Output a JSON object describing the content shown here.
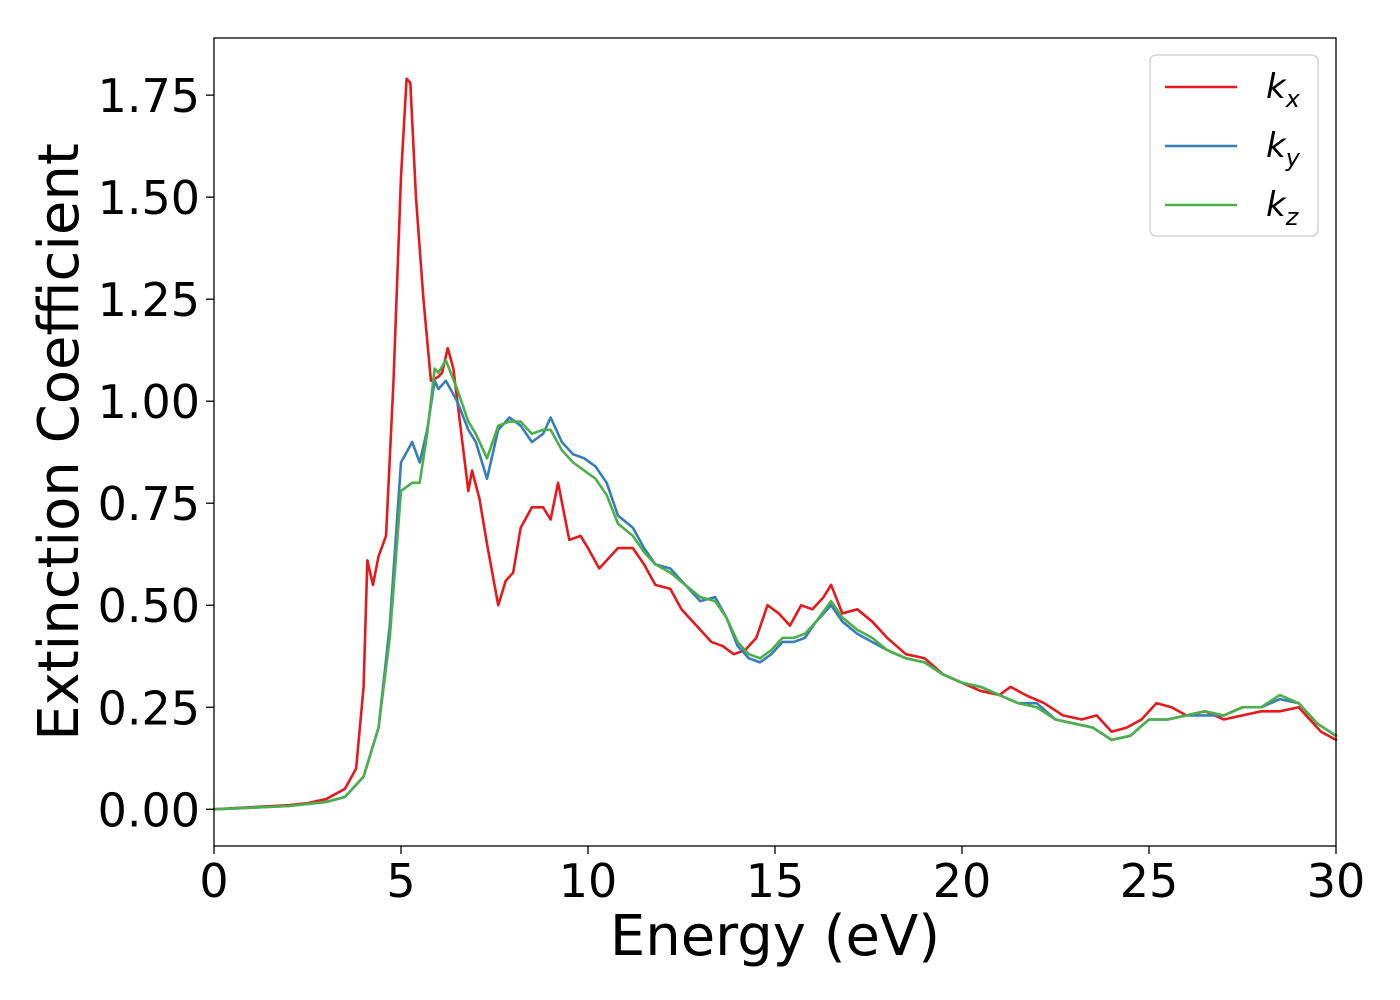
{
  "chart_data": {
    "type": "line",
    "xlabel": "Energy (eV)",
    "ylabel": "Extinction Coefficient",
    "xlim": [
      0,
      30
    ],
    "ylim": [
      -0.09,
      1.89
    ],
    "xticks": [
      0,
      5,
      10,
      15,
      20,
      25,
      30
    ],
    "xtick_labels": [
      "0",
      "5",
      "10",
      "15",
      "20",
      "25",
      "30"
    ],
    "yticks": [
      0,
      0.25,
      0.5,
      0.75,
      1.0,
      1.25,
      1.5,
      1.75
    ],
    "ytick_labels": [
      "0.00",
      "0.25",
      "0.50",
      "0.75",
      "1.00",
      "1.25",
      "1.50",
      "1.75"
    ],
    "grid": false,
    "legend_position": "top-right",
    "series": [
      {
        "name": "k_x",
        "label_base": "k",
        "label_sub": "x",
        "color": "#e41a1c",
        "points": [
          [
            0,
            0
          ],
          [
            1,
            0.005
          ],
          [
            2,
            0.01
          ],
          [
            2.5,
            0.015
          ],
          [
            3,
            0.025
          ],
          [
            3.5,
            0.05
          ],
          [
            3.8,
            0.1
          ],
          [
            4.0,
            0.3
          ],
          [
            4.1,
            0.61
          ],
          [
            4.25,
            0.55
          ],
          [
            4.4,
            0.62
          ],
          [
            4.6,
            0.67
          ],
          [
            4.8,
            1.05
          ],
          [
            5.0,
            1.55
          ],
          [
            5.15,
            1.79
          ],
          [
            5.25,
            1.78
          ],
          [
            5.4,
            1.5
          ],
          [
            5.6,
            1.25
          ],
          [
            5.8,
            1.05
          ],
          [
            6.0,
            1.06
          ],
          [
            6.1,
            1.07
          ],
          [
            6.25,
            1.13
          ],
          [
            6.4,
            1.08
          ],
          [
            6.6,
            0.93
          ],
          [
            6.8,
            0.78
          ],
          [
            6.9,
            0.83
          ],
          [
            7.1,
            0.76
          ],
          [
            7.3,
            0.65
          ],
          [
            7.6,
            0.5
          ],
          [
            7.8,
            0.56
          ],
          [
            8.0,
            0.58
          ],
          [
            8.2,
            0.69
          ],
          [
            8.5,
            0.74
          ],
          [
            8.8,
            0.74
          ],
          [
            9.0,
            0.71
          ],
          [
            9.2,
            0.8
          ],
          [
            9.5,
            0.66
          ],
          [
            9.8,
            0.67
          ],
          [
            10.0,
            0.64
          ],
          [
            10.3,
            0.59
          ],
          [
            10.6,
            0.62
          ],
          [
            10.8,
            0.64
          ],
          [
            11.2,
            0.64
          ],
          [
            11.5,
            0.6
          ],
          [
            11.8,
            0.55
          ],
          [
            12.2,
            0.54
          ],
          [
            12.5,
            0.49
          ],
          [
            12.8,
            0.46
          ],
          [
            13.0,
            0.44
          ],
          [
            13.3,
            0.41
          ],
          [
            13.6,
            0.4
          ],
          [
            13.9,
            0.38
          ],
          [
            14.2,
            0.39
          ],
          [
            14.5,
            0.42
          ],
          [
            14.8,
            0.5
          ],
          [
            15.1,
            0.48
          ],
          [
            15.4,
            0.45
          ],
          [
            15.7,
            0.5
          ],
          [
            16.0,
            0.49
          ],
          [
            16.3,
            0.52
          ],
          [
            16.5,
            0.55
          ],
          [
            16.8,
            0.48
          ],
          [
            17.2,
            0.49
          ],
          [
            17.6,
            0.46
          ],
          [
            18.0,
            0.42
          ],
          [
            18.5,
            0.38
          ],
          [
            19.0,
            0.37
          ],
          [
            19.5,
            0.33
          ],
          [
            20.0,
            0.31
          ],
          [
            20.5,
            0.29
          ],
          [
            21.0,
            0.28
          ],
          [
            21.3,
            0.3
          ],
          [
            21.7,
            0.28
          ],
          [
            22.2,
            0.26
          ],
          [
            22.7,
            0.23
          ],
          [
            23.2,
            0.22
          ],
          [
            23.6,
            0.23
          ],
          [
            24.0,
            0.19
          ],
          [
            24.4,
            0.2
          ],
          [
            24.8,
            0.22
          ],
          [
            25.2,
            0.26
          ],
          [
            25.6,
            0.25
          ],
          [
            26.0,
            0.23
          ],
          [
            26.5,
            0.24
          ],
          [
            27.0,
            0.22
          ],
          [
            27.5,
            0.23
          ],
          [
            28.0,
            0.24
          ],
          [
            28.5,
            0.24
          ],
          [
            29.0,
            0.25
          ],
          [
            29.3,
            0.22
          ],
          [
            29.6,
            0.19
          ],
          [
            30.0,
            0.17
          ]
        ]
      },
      {
        "name": "k_y",
        "label_base": "k",
        "label_sub": "y",
        "color": "#377eb8",
        "points": [
          [
            0,
            0
          ],
          [
            1,
            0.004
          ],
          [
            2,
            0.008
          ],
          [
            3,
            0.018
          ],
          [
            3.5,
            0.03
          ],
          [
            4.0,
            0.08
          ],
          [
            4.4,
            0.2
          ],
          [
            4.7,
            0.45
          ],
          [
            5.0,
            0.85
          ],
          [
            5.3,
            0.9
          ],
          [
            5.5,
            0.85
          ],
          [
            5.7,
            0.93
          ],
          [
            5.9,
            1.05
          ],
          [
            6.0,
            1.03
          ],
          [
            6.2,
            1.05
          ],
          [
            6.5,
            1.0
          ],
          [
            6.8,
            0.93
          ],
          [
            7.0,
            0.9
          ],
          [
            7.3,
            0.81
          ],
          [
            7.6,
            0.93
          ],
          [
            7.9,
            0.96
          ],
          [
            8.2,
            0.94
          ],
          [
            8.5,
            0.9
          ],
          [
            8.8,
            0.92
          ],
          [
            9.0,
            0.96
          ],
          [
            9.3,
            0.9
          ],
          [
            9.6,
            0.87
          ],
          [
            9.9,
            0.86
          ],
          [
            10.2,
            0.84
          ],
          [
            10.5,
            0.8
          ],
          [
            10.8,
            0.72
          ],
          [
            11.2,
            0.69
          ],
          [
            11.5,
            0.64
          ],
          [
            11.8,
            0.6
          ],
          [
            12.2,
            0.59
          ],
          [
            12.6,
            0.55
          ],
          [
            13.0,
            0.51
          ],
          [
            13.4,
            0.52
          ],
          [
            13.7,
            0.47
          ],
          [
            14.0,
            0.4
          ],
          [
            14.3,
            0.37
          ],
          [
            14.6,
            0.36
          ],
          [
            14.9,
            0.38
          ],
          [
            15.2,
            0.41
          ],
          [
            15.5,
            0.41
          ],
          [
            15.8,
            0.42
          ],
          [
            16.1,
            0.46
          ],
          [
            16.5,
            0.5
          ],
          [
            16.8,
            0.46
          ],
          [
            17.2,
            0.43
          ],
          [
            17.6,
            0.41
          ],
          [
            18.0,
            0.39
          ],
          [
            18.5,
            0.37
          ],
          [
            19.0,
            0.36
          ],
          [
            19.5,
            0.33
          ],
          [
            20.0,
            0.31
          ],
          [
            20.5,
            0.3
          ],
          [
            21.0,
            0.28
          ],
          [
            21.5,
            0.26
          ],
          [
            22.0,
            0.26
          ],
          [
            22.5,
            0.22
          ],
          [
            23.0,
            0.21
          ],
          [
            23.5,
            0.2
          ],
          [
            24.0,
            0.17
          ],
          [
            24.5,
            0.18
          ],
          [
            25.0,
            0.22
          ],
          [
            25.5,
            0.22
          ],
          [
            26.0,
            0.23
          ],
          [
            26.5,
            0.23
          ],
          [
            27.0,
            0.23
          ],
          [
            27.5,
            0.25
          ],
          [
            28.0,
            0.25
          ],
          [
            28.5,
            0.27
          ],
          [
            29.0,
            0.26
          ],
          [
            29.5,
            0.21
          ],
          [
            30.0,
            0.18
          ]
        ]
      },
      {
        "name": "k_z",
        "label_base": "k",
        "label_sub": "z",
        "color": "#4daf4a",
        "points": [
          [
            0,
            0
          ],
          [
            1,
            0.004
          ],
          [
            2,
            0.008
          ],
          [
            3,
            0.018
          ],
          [
            3.5,
            0.03
          ],
          [
            4.0,
            0.08
          ],
          [
            4.4,
            0.2
          ],
          [
            4.7,
            0.42
          ],
          [
            5.0,
            0.78
          ],
          [
            5.3,
            0.8
          ],
          [
            5.5,
            0.8
          ],
          [
            5.7,
            0.92
          ],
          [
            5.9,
            1.08
          ],
          [
            6.0,
            1.07
          ],
          [
            6.2,
            1.1
          ],
          [
            6.5,
            1.03
          ],
          [
            6.8,
            0.95
          ],
          [
            7.0,
            0.92
          ],
          [
            7.3,
            0.86
          ],
          [
            7.6,
            0.94
          ],
          [
            7.9,
            0.95
          ],
          [
            8.2,
            0.95
          ],
          [
            8.5,
            0.92
          ],
          [
            8.8,
            0.93
          ],
          [
            9.0,
            0.93
          ],
          [
            9.3,
            0.88
          ],
          [
            9.6,
            0.85
          ],
          [
            9.9,
            0.83
          ],
          [
            10.2,
            0.81
          ],
          [
            10.5,
            0.77
          ],
          [
            10.8,
            0.7
          ],
          [
            11.2,
            0.67
          ],
          [
            11.5,
            0.63
          ],
          [
            11.8,
            0.6
          ],
          [
            12.2,
            0.58
          ],
          [
            12.6,
            0.55
          ],
          [
            13.0,
            0.52
          ],
          [
            13.4,
            0.51
          ],
          [
            13.7,
            0.47
          ],
          [
            14.0,
            0.41
          ],
          [
            14.3,
            0.38
          ],
          [
            14.6,
            0.37
          ],
          [
            14.9,
            0.39
          ],
          [
            15.2,
            0.42
          ],
          [
            15.5,
            0.42
          ],
          [
            15.8,
            0.43
          ],
          [
            16.1,
            0.46
          ],
          [
            16.5,
            0.51
          ],
          [
            16.8,
            0.47
          ],
          [
            17.2,
            0.44
          ],
          [
            17.6,
            0.42
          ],
          [
            18.0,
            0.39
          ],
          [
            18.5,
            0.37
          ],
          [
            19.0,
            0.36
          ],
          [
            19.5,
            0.33
          ],
          [
            20.0,
            0.31
          ],
          [
            20.5,
            0.3
          ],
          [
            21.0,
            0.28
          ],
          [
            21.5,
            0.26
          ],
          [
            22.0,
            0.25
          ],
          [
            22.5,
            0.22
          ],
          [
            23.0,
            0.21
          ],
          [
            23.5,
            0.2
          ],
          [
            24.0,
            0.17
          ],
          [
            24.5,
            0.18
          ],
          [
            25.0,
            0.22
          ],
          [
            25.5,
            0.22
          ],
          [
            26.0,
            0.23
          ],
          [
            26.5,
            0.24
          ],
          [
            27.0,
            0.23
          ],
          [
            27.5,
            0.25
          ],
          [
            28.0,
            0.25
          ],
          [
            28.5,
            0.28
          ],
          [
            29.0,
            0.26
          ],
          [
            29.5,
            0.21
          ],
          [
            30.0,
            0.18
          ]
        ]
      }
    ]
  }
}
